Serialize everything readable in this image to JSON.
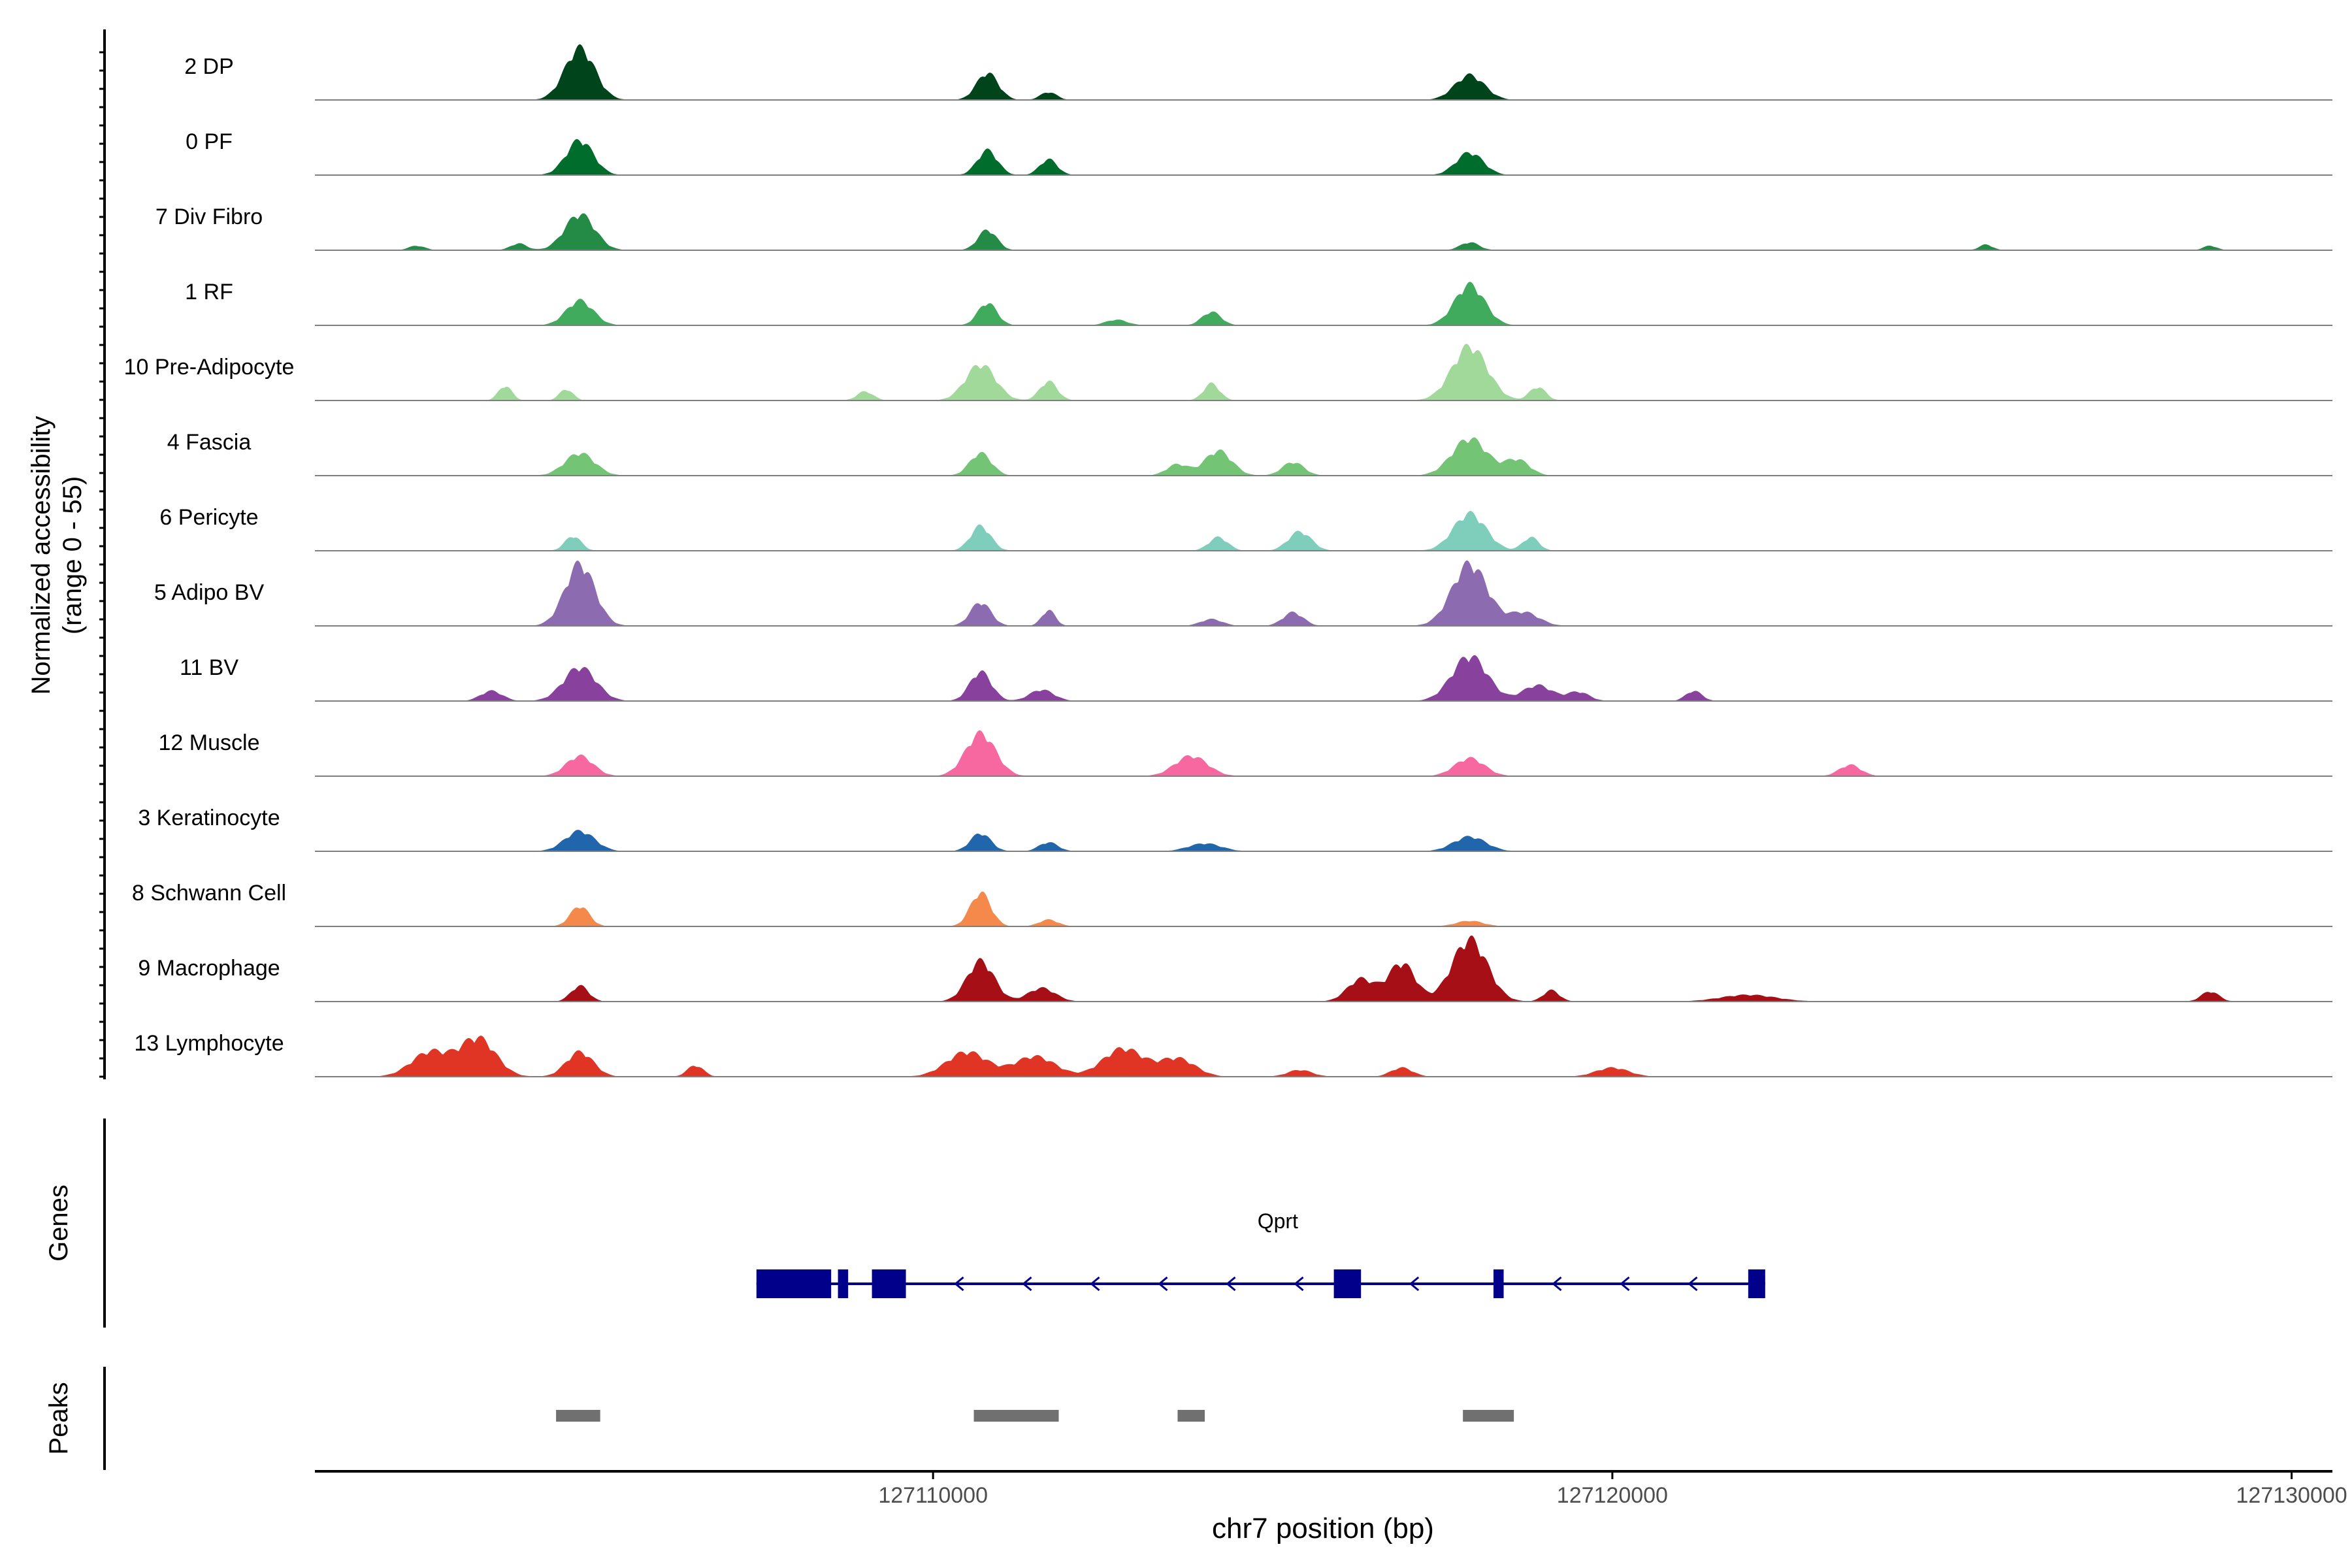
{
  "chart_data": {
    "type": "area",
    "tracks_panel": {
      "ylabel_line1": "Normalized accessibility",
      "ylabel_line2": "(range 0 - 55)",
      "ylim": [
        0,
        55
      ]
    },
    "xaxis": {
      "label": "chr7 position (bp)",
      "xlim": [
        127100900,
        127130600
      ],
      "ticks": [
        127110000,
        127120000,
        127130000
      ],
      "tick_labels": [
        "127110000",
        "127120000",
        "127130000"
      ]
    },
    "tracks": [
      {
        "name": "2 DP",
        "color": "#00441b",
        "peaks": [
          [
            127104800,
            46,
            220
          ],
          [
            127110800,
            24,
            160
          ],
          [
            127111700,
            7,
            120
          ],
          [
            127117900,
            22,
            220
          ]
        ]
      },
      {
        "name": "0 PF",
        "color": "#006d2c",
        "peaks": [
          [
            127104800,
            31,
            200
          ],
          [
            127110800,
            22,
            150
          ],
          [
            127111700,
            14,
            130
          ],
          [
            127117900,
            20,
            200
          ]
        ]
      },
      {
        "name": "7 Div Fibro",
        "color": "#238b45",
        "peaks": [
          [
            127102400,
            4,
            120
          ],
          [
            127103900,
            6,
            120
          ],
          [
            127104800,
            32,
            220
          ],
          [
            127110800,
            18,
            140
          ],
          [
            127117900,
            7,
            140
          ],
          [
            127125500,
            5,
            100
          ],
          [
            127128800,
            4,
            100
          ]
        ]
      },
      {
        "name": "1 RF",
        "color": "#41ab5d",
        "peaks": [
          [
            127104800,
            22,
            200
          ],
          [
            127110800,
            20,
            140
          ],
          [
            127112700,
            5,
            160
          ],
          [
            127114100,
            12,
            140
          ],
          [
            127117900,
            36,
            220
          ]
        ]
      },
      {
        "name": "10 Pre-Adipocyte",
        "color": "#a1d99b",
        "peaks": [
          [
            127103700,
            13,
            100
          ],
          [
            127104600,
            10,
            100
          ],
          [
            127109000,
            8,
            120
          ],
          [
            127110700,
            32,
            220
          ],
          [
            127111700,
            17,
            130
          ],
          [
            127114100,
            15,
            120
          ],
          [
            127117900,
            48,
            260
          ],
          [
            127118900,
            12,
            120
          ]
        ]
      },
      {
        "name": "4 Fascia",
        "color": "#74c476",
        "peaks": [
          [
            127104800,
            20,
            220
          ],
          [
            127110700,
            20,
            160
          ],
          [
            127113600,
            10,
            160
          ],
          [
            127114200,
            22,
            200
          ],
          [
            127115300,
            12,
            160
          ],
          [
            127117900,
            33,
            260
          ],
          [
            127118600,
            14,
            180
          ]
        ]
      },
      {
        "name": "6 Pericyte",
        "color": "#7fcdbb",
        "peaks": [
          [
            127104700,
            13,
            120
          ],
          [
            127110700,
            22,
            150
          ],
          [
            127114200,
            12,
            140
          ],
          [
            127115400,
            17,
            170
          ],
          [
            127117900,
            33,
            240
          ],
          [
            127118800,
            12,
            120
          ]
        ]
      },
      {
        "name": "5 Adipo BV",
        "color": "#8c6bb1",
        "peaks": [
          [
            127104800,
            55,
            220
          ],
          [
            127110700,
            21,
            150
          ],
          [
            127111700,
            14,
            100
          ],
          [
            127114100,
            6,
            160
          ],
          [
            127115300,
            12,
            150
          ],
          [
            127117900,
            55,
            260
          ],
          [
            127118700,
            12,
            220
          ]
        ]
      },
      {
        "name": "11 BV",
        "color": "#88419d",
        "peaks": [
          [
            127103500,
            9,
            160
          ],
          [
            127104800,
            30,
            240
          ],
          [
            127110700,
            26,
            160
          ],
          [
            127111600,
            10,
            180
          ],
          [
            127117900,
            40,
            260
          ],
          [
            127118900,
            14,
            220
          ],
          [
            127119500,
            8,
            160
          ],
          [
            127121200,
            9,
            120
          ]
        ]
      },
      {
        "name": "12 Muscle",
        "color": "#f768a1",
        "peaks": [
          [
            127104800,
            18,
            200
          ],
          [
            127110700,
            38,
            220
          ],
          [
            127113800,
            18,
            240
          ],
          [
            127117900,
            16,
            220
          ],
          [
            127123500,
            10,
            160
          ]
        ]
      },
      {
        "name": "3 Keratinocyte",
        "color": "#2166ac",
        "peaks": [
          [
            127104800,
            18,
            220
          ],
          [
            127110700,
            16,
            150
          ],
          [
            127111700,
            8,
            140
          ],
          [
            127114000,
            7,
            240
          ],
          [
            127117900,
            13,
            240
          ]
        ]
      },
      {
        "name": "8 Schwann Cell",
        "color": "#f4894b",
        "peaks": [
          [
            127104800,
            18,
            140
          ],
          [
            127110700,
            30,
            150
          ],
          [
            127111700,
            6,
            140
          ],
          [
            127117900,
            5,
            200
          ]
        ]
      },
      {
        "name": "9 Macrophage",
        "color": "#a50f15",
        "peaks": [
          [
            127104800,
            14,
            130
          ],
          [
            127110700,
            36,
            200
          ],
          [
            127111600,
            12,
            200
          ],
          [
            127116300,
            20,
            200
          ],
          [
            127116900,
            34,
            200
          ],
          [
            127117900,
            55,
            260
          ],
          [
            127119100,
            10,
            120
          ],
          [
            127122000,
            6,
            400
          ],
          [
            127128800,
            9,
            130
          ]
        ]
      },
      {
        "name": "13 Lymphocyte",
        "color": "#e03524",
        "peaks": [
          [
            127102600,
            22,
            280
          ],
          [
            127103300,
            34,
            260
          ],
          [
            127104800,
            22,
            200
          ],
          [
            127106500,
            10,
            120
          ],
          [
            127110500,
            22,
            300
          ],
          [
            127111500,
            18,
            300
          ],
          [
            127112800,
            25,
            300
          ],
          [
            127113600,
            16,
            260
          ],
          [
            127115400,
            6,
            180
          ],
          [
            127116900,
            8,
            160
          ],
          [
            127120000,
            8,
            240
          ]
        ]
      }
    ],
    "genes_panel": {
      "ylabel": "Genes",
      "gene": {
        "name": "Qprt",
        "color": "#00008b",
        "strand": "-",
        "start": 127107400,
        "end": 127122250,
        "exons": [
          [
            127107400,
            127108500
          ],
          [
            127108600,
            127108750
          ],
          [
            127109100,
            127109600
          ],
          [
            127115900,
            127116300
          ],
          [
            127118250,
            127118400
          ],
          [
            127122000,
            127122250
          ]
        ]
      }
    },
    "peaks_panel": {
      "ylabel": "Peaks",
      "color": "#707070",
      "regions": [
        [
          127104450,
          127105100
        ],
        [
          127110600,
          127111850
        ],
        [
          127113600,
          127114000
        ],
        [
          127117800,
          127118550
        ]
      ]
    }
  }
}
